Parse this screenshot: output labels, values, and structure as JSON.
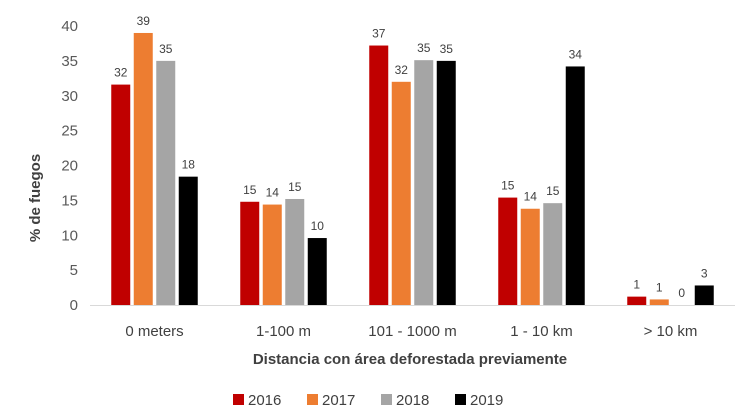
{
  "chart_data": {
    "type": "bar",
    "title": "",
    "xlabel": "Distancia con área deforestada previamente",
    "ylabel": "% de fuegos",
    "ylim": [
      0,
      40
    ],
    "yticks": [
      0,
      5,
      10,
      15,
      20,
      25,
      30,
      35,
      40
    ],
    "grid": false,
    "legend_position": "bottom",
    "categories": [
      "0 meters",
      "1-100 m",
      "101 - 1000 m",
      "1 - 10 km",
      "> 10 km"
    ],
    "series": [
      {
        "name": "2016",
        "color": "#c00000",
        "values": [
          31.6,
          14.8,
          37.2,
          15.4,
          1.2
        ],
        "labels": [
          "32",
          "15",
          "37",
          "15",
          "1"
        ]
      },
      {
        "name": "2017",
        "color": "#ed7d31",
        "values": [
          39.0,
          14.4,
          32.0,
          13.8,
          0.8
        ],
        "labels": [
          "39",
          "14",
          "32",
          "14",
          "1"
        ]
      },
      {
        "name": "2018",
        "color": "#a5a5a5",
        "values": [
          35.0,
          15.2,
          35.1,
          14.6,
          0.0
        ],
        "labels": [
          "35",
          "15",
          "35",
          "15",
          "0"
        ]
      },
      {
        "name": "2019",
        "color": "#000000",
        "values": [
          18.4,
          9.6,
          35.0,
          34.2,
          2.8
        ],
        "labels": [
          "18",
          "10",
          "35",
          "34",
          "3"
        ]
      }
    ]
  }
}
